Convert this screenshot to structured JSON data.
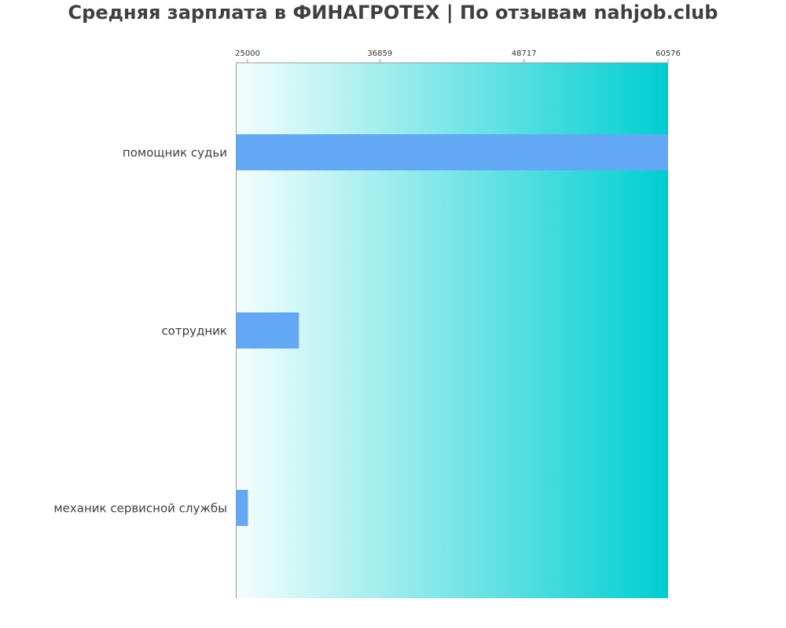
{
  "chart_data": {
    "type": "bar",
    "orientation": "horizontal",
    "title": "Средняя зарплата в ФИНАГРОТЕХ | По отзывам nahjob.club",
    "xlabel": "",
    "ylabel": "",
    "categories": [
      "помощник судьи",
      "сотрудник",
      "механик сервисной службы"
    ],
    "values": [
      60576,
      30200,
      26000
    ],
    "xlim": [
      25000,
      60576
    ],
    "x_ticks": [
      25000,
      36859,
      48717,
      60576
    ],
    "x_tick_labels": [
      "25000",
      "36859",
      "48717",
      "60576"
    ],
    "tick_position": "top",
    "grid": false,
    "legend": "none",
    "colors": {
      "bar": "#63a8f5",
      "background_start": "#f5fdfd",
      "background_end": "#00ced1",
      "axis": "#999999",
      "title": "#404040",
      "label": "#404040"
    }
  }
}
